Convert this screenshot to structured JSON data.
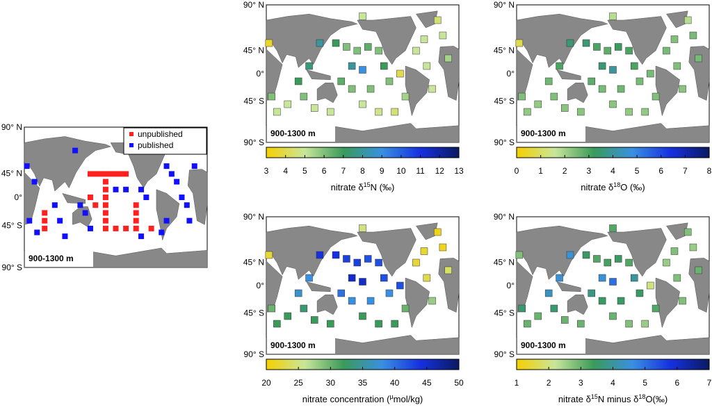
{
  "locations": [
    [
      150,
      40
    ],
    [
      170,
      35
    ],
    [
      190,
      30
    ],
    [
      210,
      35
    ],
    [
      230,
      30
    ],
    [
      180,
      10
    ],
    [
      200,
      5
    ],
    [
      240,
      10
    ],
    [
      250,
      -10
    ],
    [
      180,
      -20
    ],
    [
      200,
      -40
    ],
    [
      230,
      -50
    ],
    [
      260,
      -50
    ],
    [
      80,
      -10
    ],
    [
      90,
      -30
    ],
    [
      60,
      -40
    ],
    [
      40,
      -50
    ],
    [
      30,
      -30
    ],
    [
      120,
      40
    ],
    [
      300,
      30
    ],
    [
      320,
      10
    ],
    [
      330,
      -20
    ],
    [
      350,
      50
    ],
    [
      340,
      70
    ],
    [
      140,
      -50
    ],
    [
      25,
      40
    ],
    [
      100,
      10
    ],
    [
      270,
      0
    ],
    [
      280,
      -30
    ],
    [
      200,
      75
    ],
    [
      160,
      -10
    ],
    [
      215,
      -20
    ],
    [
      315,
      45
    ],
    [
      360,
      20
    ],
    [
      110,
      -45
    ]
  ],
  "legend_panel": {
    "depth": "900-1300 m",
    "lat_labels": [
      "90° N",
      "45° N",
      "0°",
      "45° S",
      "90° S"
    ],
    "series": [
      {
        "name": "unpublished",
        "color": "#ff2020",
        "points": [
          [
            150,
            30
          ],
          [
            160,
            30
          ],
          [
            170,
            30
          ],
          [
            180,
            30
          ],
          [
            190,
            30
          ],
          [
            200,
            30
          ],
          [
            210,
            30
          ],
          [
            220,
            30
          ],
          [
            180,
            20
          ],
          [
            180,
            10
          ],
          [
            180,
            0
          ],
          [
            180,
            -10
          ],
          [
            180,
            -20
          ],
          [
            180,
            -30
          ],
          [
            180,
            -40
          ],
          [
            200,
            -40
          ],
          [
            220,
            -40
          ],
          [
            240,
            -40
          ],
          [
            240,
            -30
          ],
          [
            240,
            -20
          ],
          [
            240,
            -10
          ],
          [
            60,
            -20
          ],
          [
            60,
            -30
          ],
          [
            60,
            -40
          ],
          [
            150,
            0
          ],
          [
            160,
            -10
          ],
          [
            270,
            -40
          ]
        ]
      },
      {
        "name": "published",
        "color": "#1010ff",
        "points": [
          [
            25,
            40
          ],
          [
            40,
            20
          ],
          [
            80,
            -10
          ],
          [
            90,
            -30
          ],
          [
            100,
            -50
          ],
          [
            130,
            -10
          ],
          [
            140,
            -20
          ],
          [
            150,
            -40
          ],
          [
            200,
            10
          ],
          [
            220,
            10
          ],
          [
            250,
            10
          ],
          [
            260,
            0
          ],
          [
            300,
            40
          ],
          [
            310,
            30
          ],
          [
            320,
            20
          ],
          [
            330,
            0
          ],
          [
            340,
            -10
          ],
          [
            345,
            -30
          ],
          [
            355,
            40
          ],
          [
            350,
            60
          ],
          [
            290,
            -45
          ],
          [
            300,
            -30
          ],
          [
            120,
            60
          ],
          [
            250,
            -50
          ],
          [
            30,
            -30
          ],
          [
            45,
            -45
          ]
        ]
      }
    ]
  },
  "panels": [
    {
      "depth": "900-1300 m",
      "lat_labels": [
        "90° N",
        "45° N",
        "0°",
        "45° S",
        "90° S"
      ],
      "colorbar_label": [
        "nitrate δ",
        "15",
        "N (‰)"
      ],
      "clim": [
        3,
        13
      ],
      "ticks": [
        3,
        4,
        5,
        6,
        7,
        8,
        9,
        10,
        11,
        12,
        13
      ],
      "colormap": [
        "#f5d000",
        "#c8e69a",
        "#3a9a5a",
        "#3a90e0",
        "#1530e0",
        "#0a1a60"
      ],
      "values": [
        7,
        6,
        6,
        6.5,
        6,
        8,
        9,
        7,
        6,
        6,
        5,
        4.8,
        4.5,
        7,
        6,
        5,
        5,
        6,
        8,
        5,
        5,
        5,
        5,
        4.5,
        5,
        3.5,
        7.5,
        4,
        5.5,
        5,
        6.5,
        6,
        5,
        5.5,
        5
      ]
    },
    {
      "depth": "900-1300 m",
      "lat_labels": [
        "90° N",
        "45° N",
        "0°",
        "45° S",
        "90° S"
      ],
      "colorbar_label": [
        "nitrate δ",
        "18",
        "O (‰)"
      ],
      "clim": [
        0,
        8
      ],
      "ticks": [
        0,
        1,
        2,
        3,
        4,
        5,
        6,
        7,
        8
      ],
      "colormap": [
        "#f5d000",
        "#c8e69a",
        "#3a9a5a",
        "#3a90e0",
        "#1530e0",
        "#0a1a60"
      ],
      "values": [
        3.5,
        3,
        2.8,
        3.2,
        3,
        3.5,
        4,
        3,
        2.5,
        2.5,
        2.3,
        2.2,
        2.2,
        2.6,
        2.4,
        2.2,
        2.2,
        2.4,
        3.5,
        2.5,
        2.4,
        2.3,
        2.5,
        1.8,
        2.3,
        0.8,
        3,
        2.5,
        2.4,
        1.8,
        2.8,
        2.6,
        2.4,
        2.5,
        2.3
      ]
    },
    {
      "depth": "900-1300 m",
      "lat_labels": [
        "90° N",
        "45° N",
        "0°",
        "45° S",
        "90° S"
      ],
      "colorbar_label": [
        "nitrate concentration (",
        "μ",
        "mol/kg)"
      ],
      "clim": [
        20,
        50
      ],
      "ticks": [
        20,
        25,
        30,
        35,
        40,
        45,
        50
      ],
      "colormap": [
        "#f5d000",
        "#c8e69a",
        "#3a9a5a",
        "#3a90e0",
        "#1530e0",
        "#0a1a60"
      ],
      "values": [
        44,
        43,
        43,
        42,
        42,
        45,
        45,
        42,
        38,
        38,
        32,
        32,
        32,
        37,
        33,
        32,
        32,
        30,
        44,
        22,
        23,
        28,
        21,
        21,
        32,
        22,
        38,
        42,
        30,
        25,
        40,
        38,
        22,
        24,
        32
      ]
    },
    {
      "depth": "900-1300 m",
      "lat_labels": [
        "90° N",
        "45° N",
        "0°",
        "45° S",
        "90° S"
      ],
      "colorbar_label": [
        "nitrate δ",
        "15",
        "N minus δ",
        "18",
        "O(‰)"
      ],
      "clim": [
        1,
        7
      ],
      "ticks": [
        1,
        2,
        3,
        4,
        5,
        6,
        7
      ],
      "colormap": [
        "#f5d000",
        "#c8e69a",
        "#3a9a5a",
        "#3a90e0",
        "#1530e0",
        "#0a1a60"
      ],
      "values": [
        3.5,
        3.2,
        3.3,
        3.5,
        3.2,
        4.5,
        5,
        4,
        3.5,
        3.5,
        3,
        2.8,
        2.6,
        4.3,
        3.6,
        3,
        3,
        3.6,
        4.5,
        2.6,
        2.8,
        2.8,
        2.6,
        2.8,
        3,
        2.8,
        4.5,
        2,
        3.2,
        3.2,
        3.8,
        3.5,
        2.8,
        3,
        3
      ]
    }
  ]
}
